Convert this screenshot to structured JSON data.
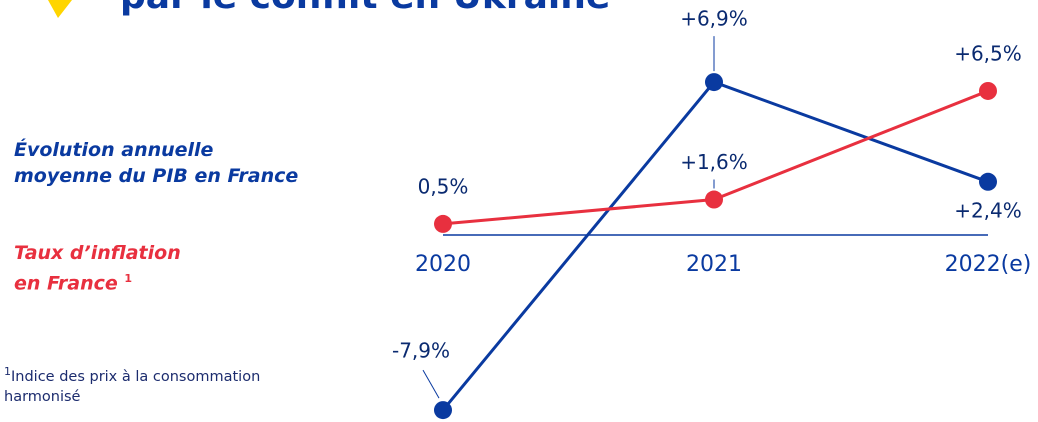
{
  "chart_data": {
    "type": "line",
    "title": "par le conflit en Ukraine",
    "categories": [
      "2020",
      "2021",
      "2022(e)"
    ],
    "series": [
      {
        "name": "Évolution annuelle\nmoyenne du PIB en France",
        "color": "#0a3aa0",
        "values": [
          -7.9,
          6.9,
          2.4
        ],
        "value_labels": [
          "-7,9%",
          "+6,9%",
          "+2,4%"
        ]
      },
      {
        "name": "Taux d’inflation\nen France",
        "color": "#e8303f",
        "values": [
          0.5,
          1.6,
          6.5
        ],
        "value_labels": [
          "0,5%",
          "+1,6%",
          "+6,5%"
        ]
      }
    ],
    "ylim": [
      -8,
      8
    ],
    "footnote": {
      "marker": "1",
      "text": "Indice des prix à la consommation harmonisé"
    }
  }
}
